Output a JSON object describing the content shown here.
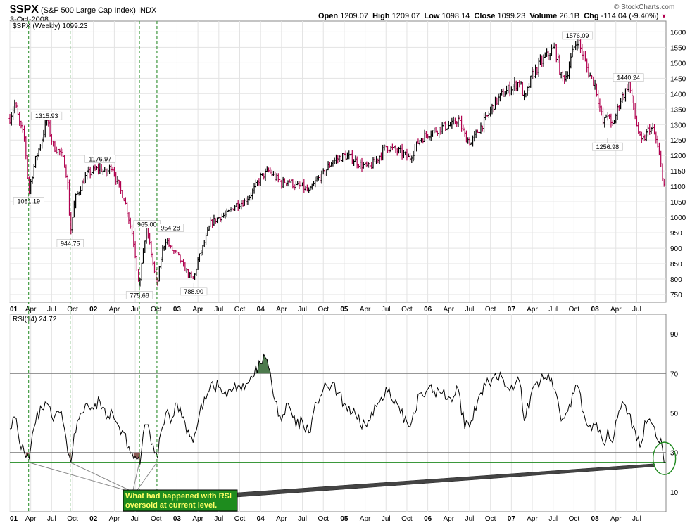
{
  "header": {
    "symbol": "$SPX",
    "name": "(S&P 500 Large Cap Index)",
    "exchange": "INDX",
    "date": "3-Oct-2008",
    "open_label": "Open",
    "open": "1209.07",
    "high_label": "High",
    "high": "1209.07",
    "low_label": "Low",
    "low": "1098.14",
    "close_label": "Close",
    "close": "1099.23",
    "volume_label": "Volume",
    "volume": "26.1B",
    "chg_label": "Chg",
    "chg": "-114.04 (-9.40%)",
    "chg_marker": "▼",
    "watermark": "© StockCharts.com"
  },
  "colors": {
    "up": "#000000",
    "down": "#b0004e",
    "grid": "#e3e3e3",
    "guide": "#1f8a1f",
    "annot_bg": "#1e8c1e",
    "annot_text": "#ffff66",
    "rsi_overbought_fill": "#4d7a4d",
    "rsi_oversold_fill": "#8a5a55"
  },
  "chart_data": [
    {
      "type": "candlestick",
      "title": "$SPX (Weekly) 1099.23",
      "ylim": [
        725,
        1635
      ],
      "yticks": [
        750,
        800,
        850,
        900,
        950,
        1000,
        1050,
        1100,
        1150,
        1200,
        1250,
        1300,
        1350,
        1400,
        1450,
        1500,
        1550,
        1600
      ],
      "x_range": [
        2001.0,
        2008.85
      ],
      "xticks": [
        {
          "label": "01",
          "t": 2001.0,
          "bold": true
        },
        {
          "label": "Apr",
          "t": 2001.25
        },
        {
          "label": "Jul",
          "t": 2001.5
        },
        {
          "label": "Oct",
          "t": 2001.75
        },
        {
          "label": "02",
          "t": 2002.0,
          "bold": true
        },
        {
          "label": "Apr",
          "t": 2002.25
        },
        {
          "label": "Jul",
          "t": 2002.5
        },
        {
          "label": "Oct",
          "t": 2002.75
        },
        {
          "label": "03",
          "t": 2003.0,
          "bold": true
        },
        {
          "label": "Apr",
          "t": 2003.25
        },
        {
          "label": "Jul",
          "t": 2003.5
        },
        {
          "label": "Oct",
          "t": 2003.75
        },
        {
          "label": "04",
          "t": 2004.0,
          "bold": true
        },
        {
          "label": "Apr",
          "t": 2004.25
        },
        {
          "label": "Jul",
          "t": 2004.5
        },
        {
          "label": "Oct",
          "t": 2004.75
        },
        {
          "label": "05",
          "t": 2005.0,
          "bold": true
        },
        {
          "label": "Apr",
          "t": 2005.25
        },
        {
          "label": "Jul",
          "t": 2005.5
        },
        {
          "label": "Oct",
          "t": 2005.75
        },
        {
          "label": "06",
          "t": 2006.0,
          "bold": true
        },
        {
          "label": "Apr",
          "t": 2006.25
        },
        {
          "label": "Jul",
          "t": 2006.5
        },
        {
          "label": "Oct",
          "t": 2006.75
        },
        {
          "label": "07",
          "t": 2007.0,
          "bold": true
        },
        {
          "label": "Apr",
          "t": 2007.25
        },
        {
          "label": "Jul",
          "t": 2007.5
        },
        {
          "label": "Oct",
          "t": 2007.75
        },
        {
          "label": "08",
          "t": 2008.0,
          "bold": true
        },
        {
          "label": "Apr",
          "t": 2008.25
        },
        {
          "label": "Jul",
          "t": 2008.5
        }
      ],
      "price_path": [
        [
          2001.0,
          1320
        ],
        [
          2001.06,
          1370
        ],
        [
          2001.12,
          1300
        ],
        [
          2001.18,
          1250
        ],
        [
          2001.225,
          1081
        ],
        [
          2001.3,
          1180
        ],
        [
          2001.38,
          1250
        ],
        [
          2001.44,
          1316
        ],
        [
          2001.52,
          1230
        ],
        [
          2001.6,
          1210
        ],
        [
          2001.66,
          1170
        ],
        [
          2001.7,
          1090
        ],
        [
          2001.722,
          945
        ],
        [
          2001.78,
          1060
        ],
        [
          2001.85,
          1100
        ],
        [
          2001.92,
          1140
        ],
        [
          2002.0,
          1150
        ],
        [
          2002.08,
          1160
        ],
        [
          2002.15,
          1140
        ],
        [
          2002.22,
          1170
        ],
        [
          2002.3,
          1100
        ],
        [
          2002.37,
          1060
        ],
        [
          2002.42,
          1000
        ],
        [
          2002.47,
          940
        ],
        [
          2002.5,
          880
        ],
        [
          2002.55,
          776
        ],
        [
          2002.6,
          900
        ],
        [
          2002.64,
          965
        ],
        [
          2002.7,
          870
        ],
        [
          2002.76,
          777
        ],
        [
          2002.82,
          890
        ],
        [
          2002.87,
          930
        ],
        [
          2002.92,
          900
        ],
        [
          2003.0,
          880
        ],
        [
          2003.08,
          840
        ],
        [
          2003.15,
          810
        ],
        [
          2003.2,
          800
        ],
        [
          2003.25,
          860
        ],
        [
          2003.33,
          920
        ],
        [
          2003.4,
          980
        ],
        [
          2003.5,
          1000
        ],
        [
          2003.6,
          1010
        ],
        [
          2003.7,
          1040
        ],
        [
          2003.8,
          1050
        ],
        [
          2003.9,
          1080
        ],
        [
          2004.0,
          1130
        ],
        [
          2004.1,
          1150
        ],
        [
          2004.17,
          1130
        ],
        [
          2004.25,
          1110
        ],
        [
          2004.33,
          1120
        ],
        [
          2004.42,
          1100
        ],
        [
          2004.5,
          1100
        ],
        [
          2004.58,
          1080
        ],
        [
          2004.67,
          1120
        ],
        [
          2004.75,
          1140
        ],
        [
          2004.85,
          1180
        ],
        [
          2005.0,
          1200
        ],
        [
          2005.1,
          1190
        ],
        [
          2005.2,
          1170
        ],
        [
          2005.3,
          1160
        ],
        [
          2005.4,
          1190
        ],
        [
          2005.5,
          1230
        ],
        [
          2005.58,
          1220
        ],
        [
          2005.68,
          1210
        ],
        [
          2005.78,
          1190
        ],
        [
          2005.9,
          1250
        ],
        [
          2006.0,
          1270
        ],
        [
          2006.15,
          1290
        ],
        [
          2006.3,
          1300
        ],
        [
          2006.36,
          1320
        ],
        [
          2006.45,
          1260
        ],
        [
          2006.52,
          1240
        ],
        [
          2006.6,
          1280
        ],
        [
          2006.7,
          1320
        ],
        [
          2006.8,
          1370
        ],
        [
          2006.9,
          1400
        ],
        [
          2007.0,
          1420
        ],
        [
          2007.1,
          1440
        ],
        [
          2007.16,
          1380
        ],
        [
          2007.25,
          1460
        ],
        [
          2007.35,
          1500
        ],
        [
          2007.45,
          1530
        ],
        [
          2007.52,
          1550
        ],
        [
          2007.6,
          1450
        ],
        [
          2007.66,
          1460
        ],
        [
          2007.75,
          1550
        ],
        [
          2007.79,
          1576
        ],
        [
          2007.86,
          1520
        ],
        [
          2007.92,
          1470
        ],
        [
          2008.0,
          1430
        ],
        [
          2008.04,
          1380
        ],
        [
          2008.1,
          1300
        ],
        [
          2008.15,
          1340
        ],
        [
          2008.2,
          1290
        ],
        [
          2008.25,
          1330
        ],
        [
          2008.3,
          1380
        ],
        [
          2008.37,
          1410
        ],
        [
          2008.4,
          1440
        ],
        [
          2008.45,
          1370
        ],
        [
          2008.5,
          1300
        ],
        [
          2008.55,
          1240
        ],
        [
          2008.6,
          1260
        ],
        [
          2008.65,
          1290
        ],
        [
          2008.7,
          1280
        ],
        [
          2008.74,
          1240
        ],
        [
          2008.78,
          1180
        ],
        [
          2008.8,
          1150
        ],
        [
          2008.83,
          1099
        ]
      ],
      "labels": [
        {
          "text": "1315.93",
          "t": 2001.44,
          "v": 1316,
          "pos": "above"
        },
        {
          "text": "1081.19",
          "t": 2001.225,
          "v": 1081,
          "pos": "below"
        },
        {
          "text": "944.75",
          "t": 2001.722,
          "v": 945,
          "pos": "below"
        },
        {
          "text": "1176.97",
          "t": 2002.08,
          "v": 1177,
          "pos": "above"
        },
        {
          "text": "965.00",
          "t": 2002.64,
          "v": 965,
          "pos": "above"
        },
        {
          "text": "954.28",
          "t": 2002.92,
          "v": 954,
          "pos": "above"
        },
        {
          "text": "775.68",
          "t": 2002.55,
          "v": 776,
          "pos": "below"
        },
        {
          "text": "788.90",
          "t": 2003.2,
          "v": 789,
          "pos": "below"
        },
        {
          "text": "1576.09",
          "t": 2007.79,
          "v": 1576,
          "pos": "above"
        },
        {
          "text": "1440.24",
          "t": 2008.4,
          "v": 1440,
          "pos": "above"
        },
        {
          "text": "1256.98",
          "t": 2008.15,
          "v": 1257,
          "pos": "below"
        }
      ]
    },
    {
      "type": "line",
      "title": "RSI(14) 24.72",
      "ylim": [
        0,
        100
      ],
      "yticks": [
        10,
        30,
        50,
        70,
        90
      ],
      "levels": [
        {
          "value": 70,
          "style": "solid"
        },
        {
          "value": 50,
          "style": "dashdot"
        },
        {
          "value": 30,
          "style": "solid"
        }
      ],
      "support_level": 25,
      "rsi_path": [
        [
          2001.0,
          42
        ],
        [
          2001.06,
          48
        ],
        [
          2001.12,
          35
        ],
        [
          2001.18,
          30
        ],
        [
          2001.225,
          27
        ],
        [
          2001.3,
          45
        ],
        [
          2001.38,
          52
        ],
        [
          2001.44,
          55
        ],
        [
          2001.52,
          46
        ],
        [
          2001.6,
          50
        ],
        [
          2001.66,
          42
        ],
        [
          2001.7,
          30
        ],
        [
          2001.722,
          25
        ],
        [
          2001.78,
          40
        ],
        [
          2001.85,
          50
        ],
        [
          2001.92,
          55
        ],
        [
          2002.0,
          52
        ],
        [
          2002.08,
          56
        ],
        [
          2002.15,
          47
        ],
        [
          2002.22,
          52
        ],
        [
          2002.3,
          43
        ],
        [
          2002.37,
          40
        ],
        [
          2002.42,
          33
        ],
        [
          2002.47,
          30
        ],
        [
          2002.5,
          28
        ],
        [
          2002.55,
          24
        ],
        [
          2002.6,
          40
        ],
        [
          2002.64,
          44
        ],
        [
          2002.7,
          34
        ],
        [
          2002.76,
          27
        ],
        [
          2002.82,
          43
        ],
        [
          2002.87,
          50
        ],
        [
          2002.92,
          45
        ],
        [
          2003.0,
          55
        ],
        [
          2003.08,
          48
        ],
        [
          2003.15,
          38
        ],
        [
          2003.2,
          35
        ],
        [
          2003.25,
          45
        ],
        [
          2003.33,
          58
        ],
        [
          2003.4,
          65
        ],
        [
          2003.5,
          63
        ],
        [
          2003.6,
          58
        ],
        [
          2003.7,
          65
        ],
        [
          2003.8,
          62
        ],
        [
          2003.9,
          68
        ],
        [
          2004.0,
          75
        ],
        [
          2004.05,
          78
        ],
        [
          2004.1,
          73
        ],
        [
          2004.17,
          56
        ],
        [
          2004.25,
          46
        ],
        [
          2004.33,
          55
        ],
        [
          2004.42,
          43
        ],
        [
          2004.5,
          46
        ],
        [
          2004.58,
          40
        ],
        [
          2004.67,
          55
        ],
        [
          2004.75,
          62
        ],
        [
          2004.85,
          64
        ],
        [
          2005.0,
          55
        ],
        [
          2005.1,
          50
        ],
        [
          2005.2,
          44
        ],
        [
          2005.3,
          46
        ],
        [
          2005.4,
          55
        ],
        [
          2005.5,
          63
        ],
        [
          2005.58,
          56
        ],
        [
          2005.68,
          50
        ],
        [
          2005.78,
          43
        ],
        [
          2005.9,
          60
        ],
        [
          2006.0,
          62
        ],
        [
          2006.15,
          60
        ],
        [
          2006.3,
          58
        ],
        [
          2006.36,
          62
        ],
        [
          2006.45,
          42
        ],
        [
          2006.52,
          46
        ],
        [
          2006.6,
          56
        ],
        [
          2006.7,
          64
        ],
        [
          2006.8,
          70
        ],
        [
          2006.9,
          67
        ],
        [
          2007.0,
          64
        ],
        [
          2007.1,
          66
        ],
        [
          2007.16,
          46
        ],
        [
          2007.25,
          62
        ],
        [
          2007.35,
          66
        ],
        [
          2007.45,
          70
        ],
        [
          2007.52,
          62
        ],
        [
          2007.6,
          46
        ],
        [
          2007.66,
          50
        ],
        [
          2007.75,
          60
        ],
        [
          2007.79,
          64
        ],
        [
          2007.86,
          50
        ],
        [
          2007.92,
          43
        ],
        [
          2008.0,
          44
        ],
        [
          2008.04,
          40
        ],
        [
          2008.1,
          35
        ],
        [
          2008.15,
          42
        ],
        [
          2008.2,
          36
        ],
        [
          2008.25,
          46
        ],
        [
          2008.3,
          52
        ],
        [
          2008.37,
          54
        ],
        [
          2008.4,
          50
        ],
        [
          2008.45,
          42
        ],
        [
          2008.5,
          36
        ],
        [
          2008.55,
          35
        ],
        [
          2008.6,
          46
        ],
        [
          2008.65,
          47
        ],
        [
          2008.7,
          44
        ],
        [
          2008.74,
          38
        ],
        [
          2008.78,
          37
        ],
        [
          2008.8,
          32
        ],
        [
          2008.83,
          24.72
        ]
      ],
      "annotation": "What had happened with RSI oversold at current level.",
      "annotation_lines": [
        "What had happened with RSI",
        "oversold at current level."
      ],
      "highlight_dates": [
        2001.225,
        2001.722,
        2002.55,
        2002.76
      ]
    }
  ]
}
